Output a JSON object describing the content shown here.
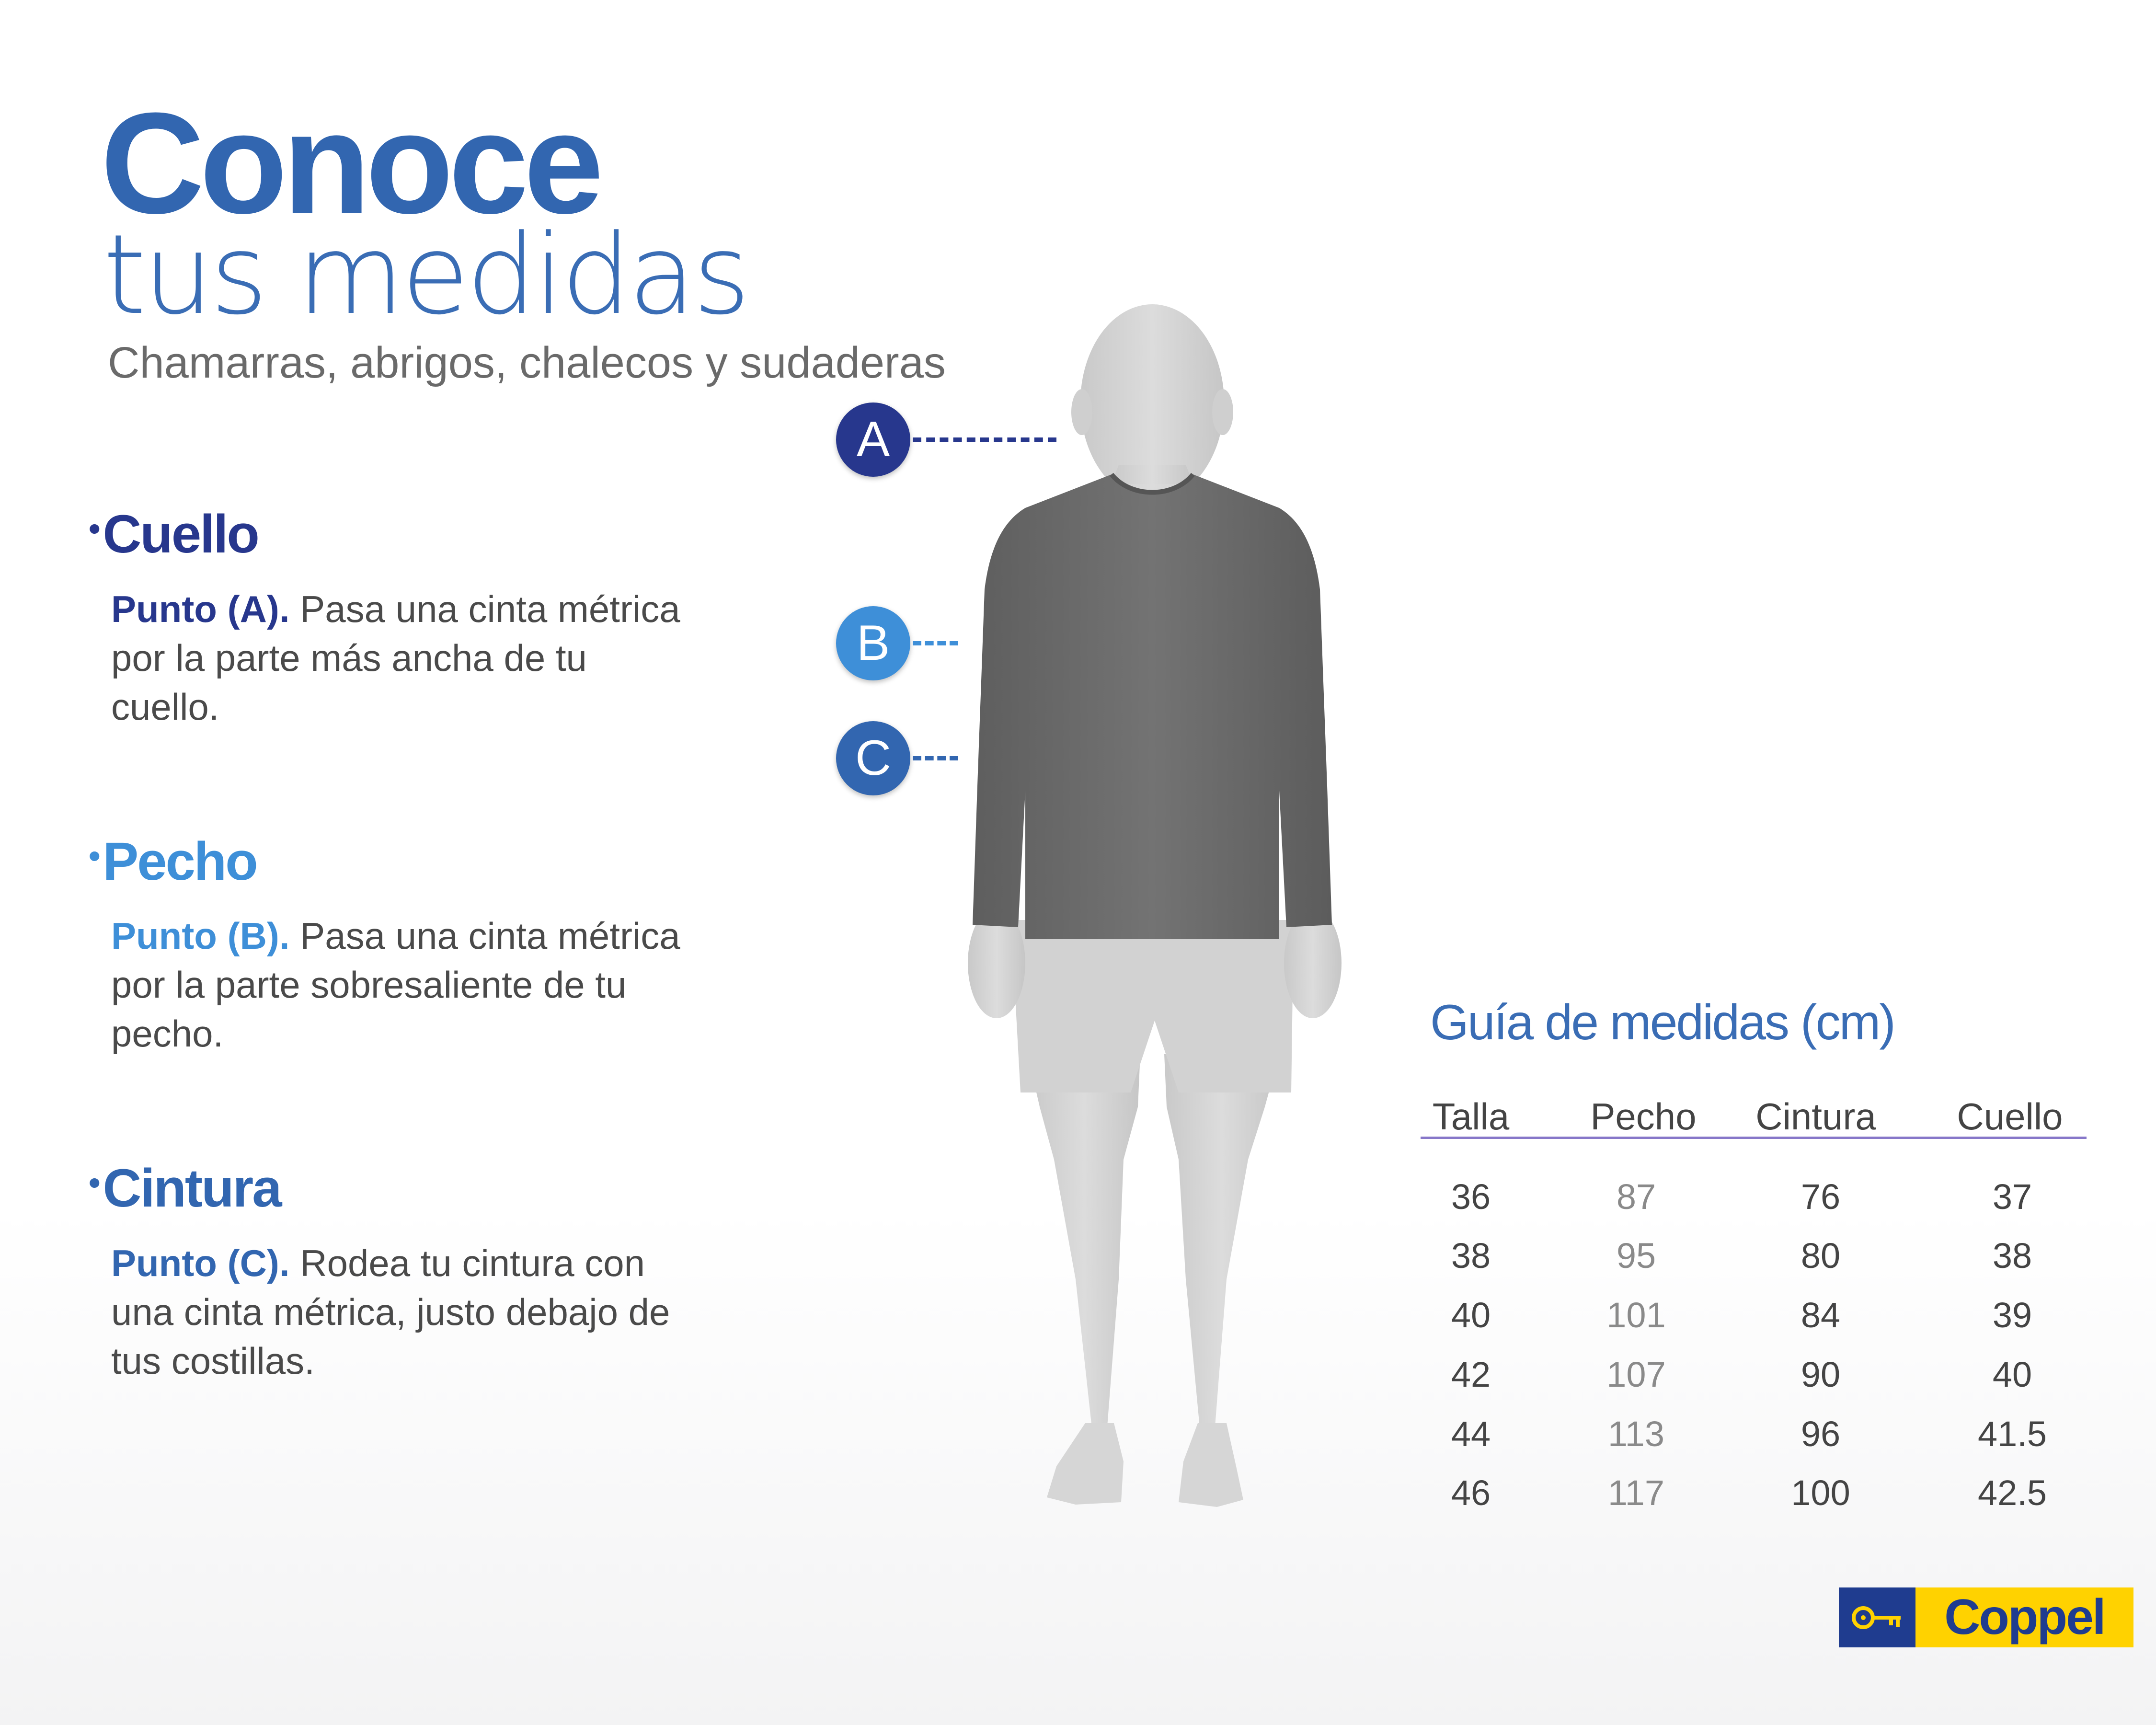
{
  "header": {
    "title": "Conoce",
    "title_line2": "tus medidas",
    "subtitle": "Chamarras, abrigos, chalecos y sudaderas"
  },
  "sections": [
    {
      "bullet": "•",
      "heading": "Cuello",
      "point": "Punto (A).",
      "text_lines": [
        "Pasa una cinta métrica",
        "por la parte más ancha de tu",
        "cuello."
      ],
      "color": "#27378d"
    },
    {
      "bullet": "•",
      "heading": "Pecho",
      "point": "Punto (B).",
      "text_lines": [
        "Pasa una cinta métrica",
        "por la parte sobresaliente de tu",
        "pecho."
      ],
      "color": "#3e8fd8"
    },
    {
      "bullet": "•",
      "heading": "Cintura",
      "point": "Punto (C).",
      "text_lines": [
        "Rodea tu cintura con",
        "una cinta métrica, justo debajo de",
        "tus costillas."
      ],
      "color": "#3266b0"
    }
  ],
  "markers": [
    {
      "label": "A",
      "color": "#27378d"
    },
    {
      "label": "B",
      "color": "#3e8fd8"
    },
    {
      "label": "C",
      "color": "#3266b0"
    }
  ],
  "size_table": {
    "title": "Guía de medidas (cm)",
    "columns": [
      "Talla",
      "Pecho",
      "Cintura",
      "Cuello"
    ],
    "rows": [
      [
        "36",
        "87",
        "76",
        "37"
      ],
      [
        "38",
        "95",
        "80",
        "38"
      ],
      [
        "40",
        "101",
        "84",
        "39"
      ],
      [
        "42",
        "107",
        "90",
        "40"
      ],
      [
        "44",
        "113",
        "96",
        "41.5"
      ],
      [
        "46",
        "117",
        "100",
        "42.5"
      ]
    ],
    "colors": {
      "talla": "#444444",
      "pecho": "#8a8a8a",
      "cintura": "#444444",
      "cuello": "#444444",
      "rule": "#8777c9"
    }
  },
  "logo": {
    "text": "Coppel",
    "icon": "key-icon",
    "colors": {
      "key_bg": "#1f3c8f",
      "word_bg": "#ffd200"
    }
  },
  "figure": {
    "icon": "mannequin-figure",
    "colors": {
      "shirt": "#6b6b6b",
      "skin": "#d4d4d4"
    }
  }
}
